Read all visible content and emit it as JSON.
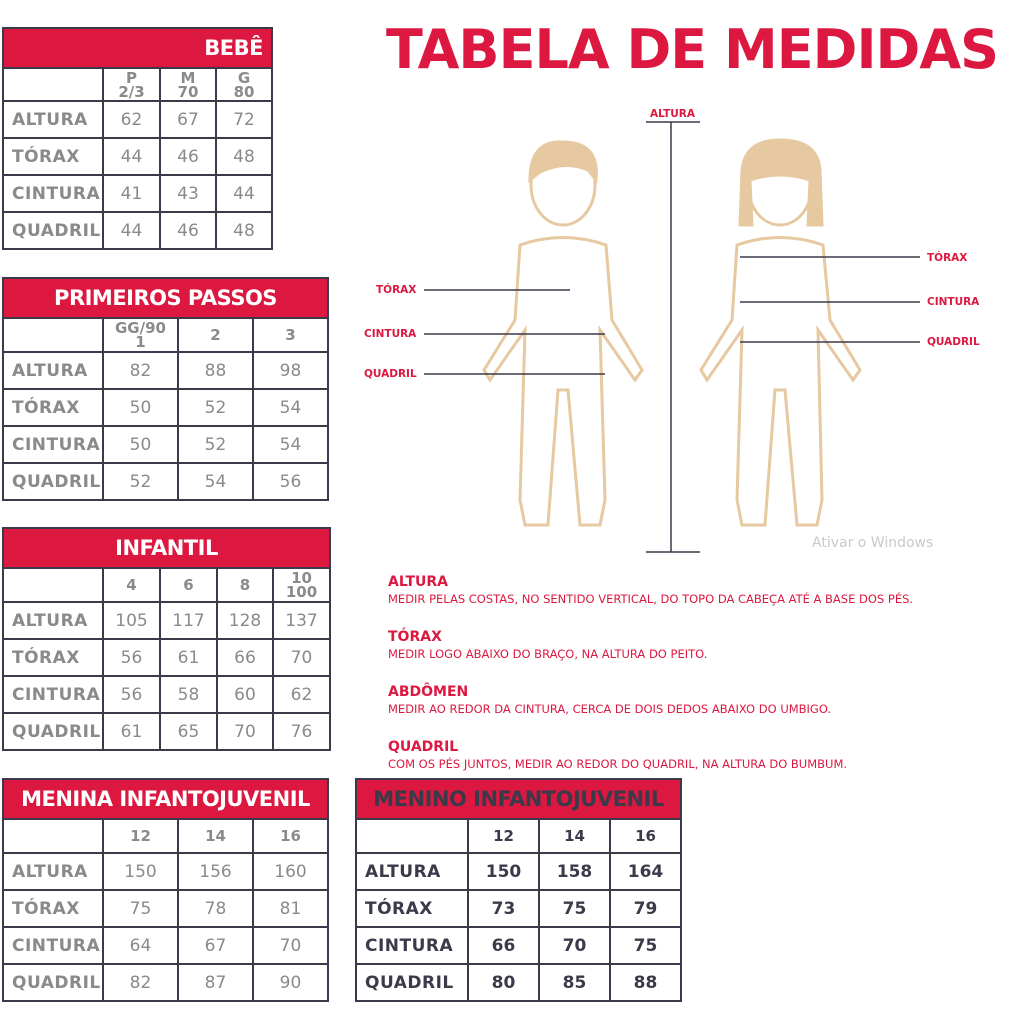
{
  "title": "TABELA DE MEDIDAS",
  "tables": [
    {
      "id": "bebe",
      "title": "BEBÊ",
      "columns": [
        "P\n2/3",
        "M\n70",
        "G\n80"
      ],
      "rows": [
        [
          "ALTURA",
          "62",
          "67",
          "72"
        ],
        [
          "TÓRAX",
          "44",
          "46",
          "48"
        ],
        [
          "CINTURA",
          "41",
          "43",
          "44"
        ],
        [
          "QUADRIL",
          "44",
          "46",
          "48"
        ]
      ]
    },
    {
      "id": "primeiros-passos",
      "title": "PRIMEIROS PASSOS",
      "columns": [
        "GG/90\n1",
        "2",
        "3"
      ],
      "rows": [
        [
          "ALTURA",
          "82",
          "88",
          "98"
        ],
        [
          "TÓRAX",
          "50",
          "52",
          "54"
        ],
        [
          "CINTURA",
          "50",
          "52",
          "54"
        ],
        [
          "QUADRIL",
          "52",
          "54",
          "56"
        ]
      ]
    },
    {
      "id": "infantil",
      "title": "INFANTIL",
      "columns": [
        "4",
        "6",
        "8",
        "10\n100"
      ],
      "rows": [
        [
          "ALTURA",
          "105",
          "117",
          "128",
          "137"
        ],
        [
          "TÓRAX",
          "56",
          "61",
          "66",
          "70"
        ],
        [
          "CINTURA",
          "56",
          "58",
          "60",
          "62"
        ],
        [
          "QUADRIL",
          "61",
          "65",
          "70",
          "76"
        ]
      ]
    },
    {
      "id": "menina",
      "title": "MENINA INFANTOJUVENIL",
      "columns": [
        "12",
        "14",
        "16"
      ],
      "rows": [
        [
          "ALTURA",
          "150",
          "156",
          "160"
        ],
        [
          "TÓRAX",
          "75",
          "78",
          "81"
        ],
        [
          "CINTURA",
          "64",
          "67",
          "70"
        ],
        [
          "QUADRIL",
          "82",
          "87",
          "90"
        ]
      ]
    },
    {
      "id": "menino",
      "title": "MENINO INFANTOJUVENIL",
      "columns": [
        "12",
        "14",
        "16"
      ],
      "rows": [
        [
          "ALTURA",
          "150",
          "158",
          "164"
        ],
        [
          "TÓRAX",
          "73",
          "75",
          "79"
        ],
        [
          "CINTURA",
          "66",
          "70",
          "75"
        ],
        [
          "QUADRIL",
          "80",
          "85",
          "88"
        ]
      ]
    }
  ],
  "diagram": {
    "altura": "ALTURA",
    "torax": "TÓRAX",
    "cintura": "CINTURA",
    "quadril": "QUADRIL"
  },
  "descriptions": [
    {
      "title": "ALTURA",
      "text": "MEDIR PELAS COSTAS, NO SENTIDO VERTICAL, DO TOPO DA CABEÇA ATÉ A BASE DOS PÉS."
    },
    {
      "title": "TÓRAX",
      "text": "MEDIR LOGO ABAIXO DO BRAÇO, NA ALTURA DO PEITO."
    },
    {
      "title": "ABDÔMEN",
      "text": "MEDIR AO REDOR DA CINTURA, CERCA DE DOIS DEDOS ABAIXO DO UMBIGO."
    },
    {
      "title": "QUADRIL",
      "text": "COM OS PÉS JUNTOS, MEDIR AO REDOR DO QUADRIL, NA ALTURA DO BUMBUM."
    }
  ],
  "watermark": "Ativar o Windows",
  "colors": {
    "accent": "#dc1840",
    "border": "#3a3a4a",
    "figure": "#e6c9a0"
  }
}
